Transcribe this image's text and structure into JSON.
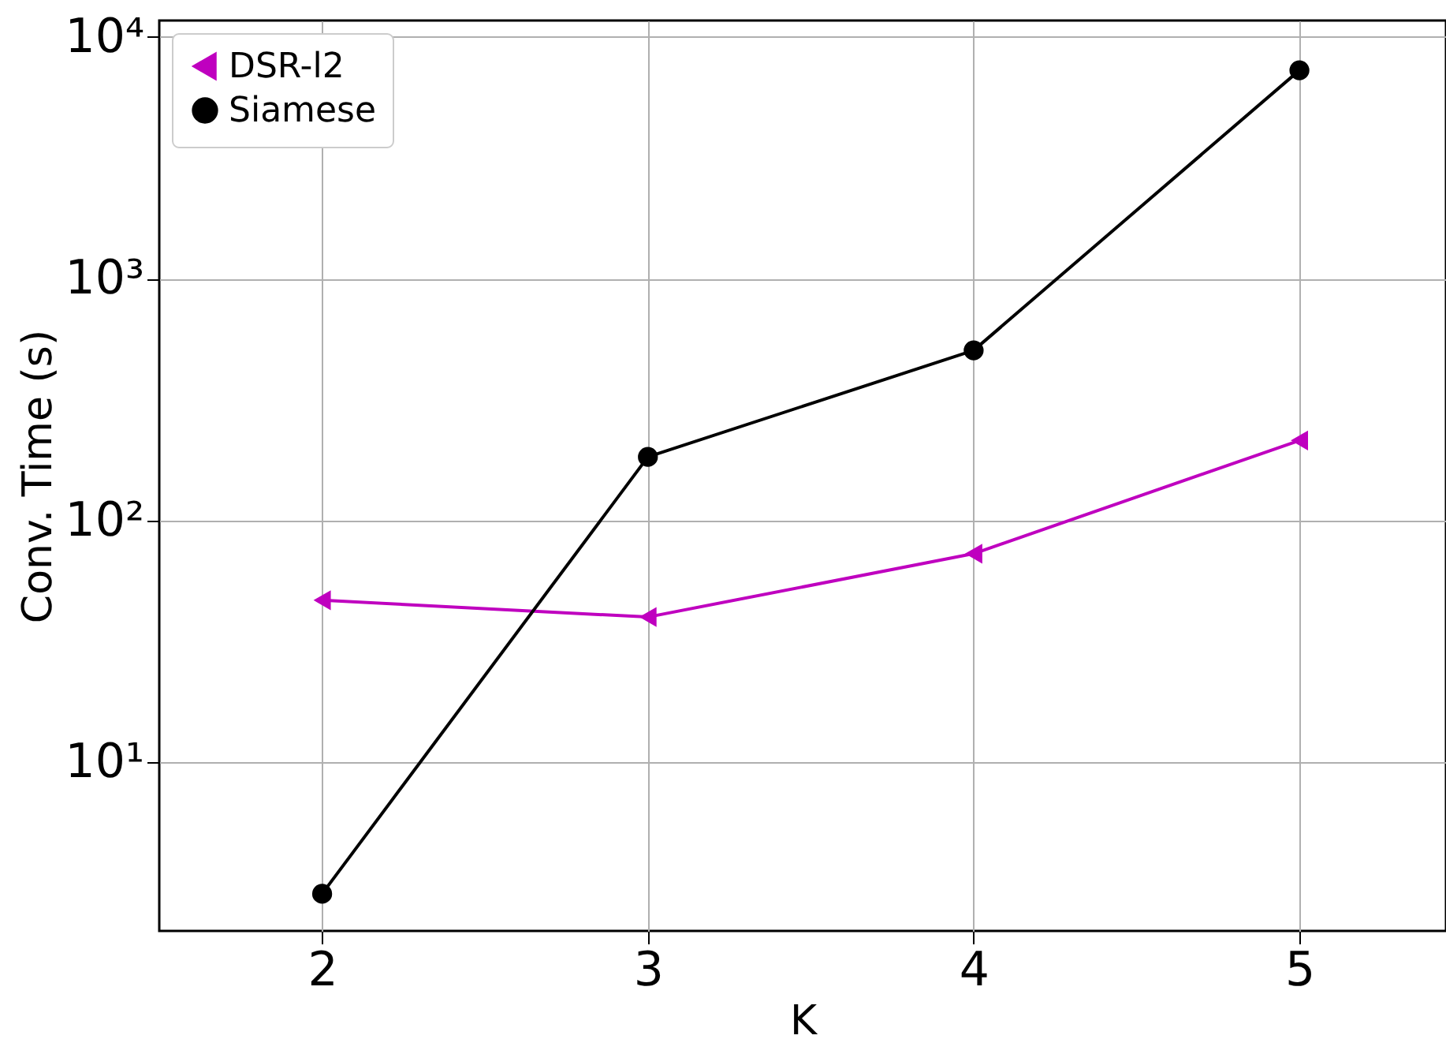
{
  "chart_data": {
    "type": "line",
    "xlabel": "K",
    "ylabel": "Conv. Time (s)",
    "x": [
      2,
      3,
      4,
      5
    ],
    "series": [
      {
        "name": "DSR-l2",
        "color": "#bf00bf",
        "marker": "triangle",
        "values": [
          46.7,
          39.8,
          72.8,
          214
        ]
      },
      {
        "name": "Siamese",
        "color": "#000000",
        "marker": "circle",
        "values": [
          2.85,
          183,
          505,
          7280
        ]
      }
    ],
    "xlim": [
      1.5,
      5.45
    ],
    "xticks": [
      2,
      3,
      4,
      5
    ],
    "ylim": [
      2,
      11700
    ],
    "yticks": [
      {
        "value": 10,
        "label": "10¹"
      },
      {
        "value": 100,
        "label": "10²"
      },
      {
        "value": 1000,
        "label": "10³"
      },
      {
        "value": 10000,
        "label": "10⁴"
      }
    ],
    "log": "y",
    "grid": true,
    "legend": "top left"
  }
}
